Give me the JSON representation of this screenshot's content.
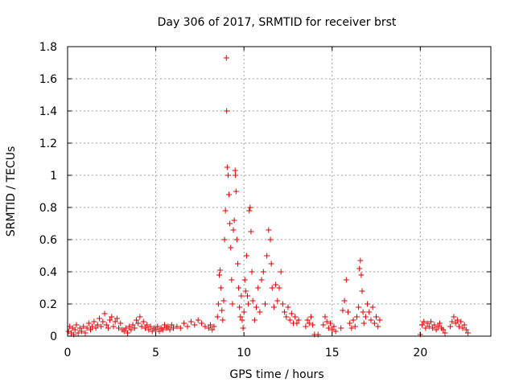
{
  "chart_data": {
    "type": "scatter",
    "title": "Day 306 of 2017, SRMTID for receiver brst",
    "xlabel": "GPS time / hours",
    "ylabel": "SRMTID / TECUs",
    "xlim": [
      0,
      24
    ],
    "ylim": [
      0,
      1.8
    ],
    "xticks": [
      "0",
      "5",
      "10",
      "15",
      "20"
    ],
    "yticks": [
      "0",
      "0.2",
      "0.4",
      "0.6",
      "0.8",
      "1",
      "1.2",
      "1.4",
      "1.6",
      "1.8"
    ],
    "grid": true,
    "marker": "+",
    "color": "#e00000",
    "points": [
      [
        0.05,
        0.03
      ],
      [
        0.12,
        0.06
      ],
      [
        0.2,
        0.02
      ],
      [
        0.28,
        0.05
      ],
      [
        0.35,
        0.01
      ],
      [
        0.42,
        0.04
      ],
      [
        0.5,
        0.07
      ],
      [
        0.6,
        0.02
      ],
      [
        0.7,
        0.05
      ],
      [
        0.8,
        0.03
      ],
      [
        0.9,
        0.06
      ],
      [
        1.0,
        0.02
      ],
      [
        1.1,
        0.05
      ],
      [
        1.2,
        0.08
      ],
      [
        1.3,
        0.04
      ],
      [
        1.4,
        0.06
      ],
      [
        1.5,
        0.09
      ],
      [
        1.6,
        0.05
      ],
      [
        1.7,
        0.07
      ],
      [
        1.8,
        0.11
      ],
      [
        1.9,
        0.06
      ],
      [
        2.0,
        0.09
      ],
      [
        2.1,
        0.14
      ],
      [
        2.2,
        0.07
      ],
      [
        2.3,
        0.05
      ],
      [
        2.4,
        0.1
      ],
      [
        2.5,
        0.12
      ],
      [
        2.6,
        0.06
      ],
      [
        2.7,
        0.09
      ],
      [
        2.8,
        0.11
      ],
      [
        2.9,
        0.05
      ],
      [
        3.0,
        0.08
      ],
      [
        3.1,
        0.04
      ],
      [
        3.2,
        0.03
      ],
      [
        3.3,
        0.05
      ],
      [
        3.4,
        0.02
      ],
      [
        3.5,
        0.06
      ],
      [
        3.6,
        0.04
      ],
      [
        3.7,
        0.07
      ],
      [
        3.8,
        0.05
      ],
      [
        3.9,
        0.1
      ],
      [
        4.0,
        0.08
      ],
      [
        4.1,
        0.12
      ],
      [
        4.2,
        0.06
      ],
      [
        4.3,
        0.09
      ],
      [
        4.4,
        0.05
      ],
      [
        4.5,
        0.07
      ],
      [
        4.6,
        0.04
      ],
      [
        4.7,
        0.06
      ],
      [
        4.8,
        0.03
      ],
      [
        4.9,
        0.05
      ],
      [
        5.0,
        0.04
      ],
      [
        5.1,
        0.06
      ],
      [
        5.2,
        0.03
      ],
      [
        5.3,
        0.05
      ],
      [
        5.4,
        0.04
      ],
      [
        5.5,
        0.07
      ],
      [
        5.6,
        0.05
      ],
      [
        5.7,
        0.06
      ],
      [
        5.8,
        0.04
      ],
      [
        5.9,
        0.07
      ],
      [
        6.0,
        0.05
      ],
      [
        6.2,
        0.06
      ],
      [
        6.4,
        0.05
      ],
      [
        6.6,
        0.08
      ],
      [
        6.8,
        0.06
      ],
      [
        7.0,
        0.09
      ],
      [
        7.2,
        0.07
      ],
      [
        7.4,
        0.1
      ],
      [
        7.6,
        0.08
      ],
      [
        7.8,
        0.06
      ],
      [
        8.0,
        0.05
      ],
      [
        8.1,
        0.07
      ],
      [
        8.2,
        0.04
      ],
      [
        8.3,
        0.06
      ],
      [
        8.5,
        0.12
      ],
      [
        8.55,
        0.2
      ],
      [
        8.6,
        0.38
      ],
      [
        8.65,
        0.41
      ],
      [
        8.7,
        0.3
      ],
      [
        8.75,
        0.16
      ],
      [
        8.8,
        0.1
      ],
      [
        8.85,
        0.22
      ],
      [
        8.9,
        0.6
      ],
      [
        8.95,
        0.78
      ],
      [
        9.0,
        1.73
      ],
      [
        9.02,
        1.4
      ],
      [
        9.05,
        1.05
      ],
      [
        9.1,
        1.0
      ],
      [
        9.15,
        0.88
      ],
      [
        9.2,
        0.7
      ],
      [
        9.25,
        0.55
      ],
      [
        9.3,
        0.35
      ],
      [
        9.35,
        0.2
      ],
      [
        9.4,
        0.66
      ],
      [
        9.45,
        0.72
      ],
      [
        9.5,
        1.03
      ],
      [
        9.52,
        1.0
      ],
      [
        9.55,
        0.9
      ],
      [
        9.6,
        0.6
      ],
      [
        9.65,
        0.45
      ],
      [
        9.7,
        0.3
      ],
      [
        9.75,
        0.18
      ],
      [
        9.8,
        0.12
      ],
      [
        9.85,
        0.25
      ],
      [
        9.9,
        0.1
      ],
      [
        9.95,
        0.05
      ],
      [
        10.0,
        0.15
      ],
      [
        10.05,
        0.35
      ],
      [
        10.1,
        0.28
      ],
      [
        10.15,
        0.5
      ],
      [
        10.2,
        0.25
      ],
      [
        10.25,
        0.2
      ],
      [
        10.3,
        0.78
      ],
      [
        10.35,
        0.8
      ],
      [
        10.4,
        0.65
      ],
      [
        10.45,
        0.4
      ],
      [
        10.5,
        0.22
      ],
      [
        10.6,
        0.1
      ],
      [
        10.7,
        0.18
      ],
      [
        10.8,
        0.3
      ],
      [
        10.9,
        0.15
      ],
      [
        11.0,
        0.35
      ],
      [
        11.1,
        0.4
      ],
      [
        11.2,
        0.2
      ],
      [
        11.3,
        0.5
      ],
      [
        11.4,
        0.66
      ],
      [
        11.5,
        0.6
      ],
      [
        11.55,
        0.45
      ],
      [
        11.6,
        0.3
      ],
      [
        11.7,
        0.18
      ],
      [
        11.8,
        0.32
      ],
      [
        11.9,
        0.22
      ],
      [
        12.0,
        0.3
      ],
      [
        12.1,
        0.4
      ],
      [
        12.2,
        0.2
      ],
      [
        12.3,
        0.15
      ],
      [
        12.4,
        0.12
      ],
      [
        12.5,
        0.18
      ],
      [
        12.6,
        0.1
      ],
      [
        12.7,
        0.14
      ],
      [
        12.8,
        0.08
      ],
      [
        12.9,
        0.12
      ],
      [
        13.0,
        0.08
      ],
      [
        13.1,
        0.1
      ],
      [
        13.5,
        0.06
      ],
      [
        13.6,
        0.1
      ],
      [
        13.7,
        0.08
      ],
      [
        13.8,
        0.12
      ],
      [
        13.9,
        0.07
      ],
      [
        14.0,
        0.01
      ],
      [
        14.2,
        0.01
      ],
      [
        14.5,
        0.07
      ],
      [
        14.6,
        0.12
      ],
      [
        14.7,
        0.09
      ],
      [
        14.8,
        0.05
      ],
      [
        14.9,
        0.08
      ],
      [
        15.0,
        0.04
      ],
      [
        15.1,
        0.06
      ],
      [
        15.2,
        0.03
      ],
      [
        15.5,
        0.05
      ],
      [
        15.6,
        0.16
      ],
      [
        15.7,
        0.22
      ],
      [
        15.8,
        0.35
      ],
      [
        15.9,
        0.15
      ],
      [
        16.0,
        0.08
      ],
      [
        16.1,
        0.05
      ],
      [
        16.2,
        0.1
      ],
      [
        16.3,
        0.06
      ],
      [
        16.4,
        0.12
      ],
      [
        16.5,
        0.18
      ],
      [
        16.55,
        0.42
      ],
      [
        16.6,
        0.47
      ],
      [
        16.65,
        0.38
      ],
      [
        16.7,
        0.28
      ],
      [
        16.75,
        0.15
      ],
      [
        16.8,
        0.08
      ],
      [
        16.9,
        0.12
      ],
      [
        17.0,
        0.2
      ],
      [
        17.1,
        0.15
      ],
      [
        17.2,
        0.1
      ],
      [
        17.3,
        0.18
      ],
      [
        17.4,
        0.08
      ],
      [
        17.5,
        0.12
      ],
      [
        17.6,
        0.06
      ],
      [
        17.7,
        0.1
      ],
      [
        20.0,
        0.01
      ],
      [
        20.1,
        0.07
      ],
      [
        20.2,
        0.09
      ],
      [
        20.3,
        0.05
      ],
      [
        20.4,
        0.08
      ],
      [
        20.5,
        0.06
      ],
      [
        20.6,
        0.09
      ],
      [
        20.7,
        0.05
      ],
      [
        20.8,
        0.07
      ],
      [
        20.9,
        0.04
      ],
      [
        21.0,
        0.06
      ],
      [
        21.1,
        0.08
      ],
      [
        21.2,
        0.05
      ],
      [
        21.3,
        0.04
      ],
      [
        21.4,
        0.02
      ],
      [
        21.7,
        0.06
      ],
      [
        21.8,
        0.09
      ],
      [
        21.9,
        0.12
      ],
      [
        22.0,
        0.08
      ],
      [
        22.1,
        0.1
      ],
      [
        22.2,
        0.06
      ],
      [
        22.3,
        0.09
      ],
      [
        22.4,
        0.05
      ],
      [
        22.5,
        0.07
      ],
      [
        22.6,
        0.04
      ],
      [
        22.7,
        0.02
      ]
    ]
  }
}
